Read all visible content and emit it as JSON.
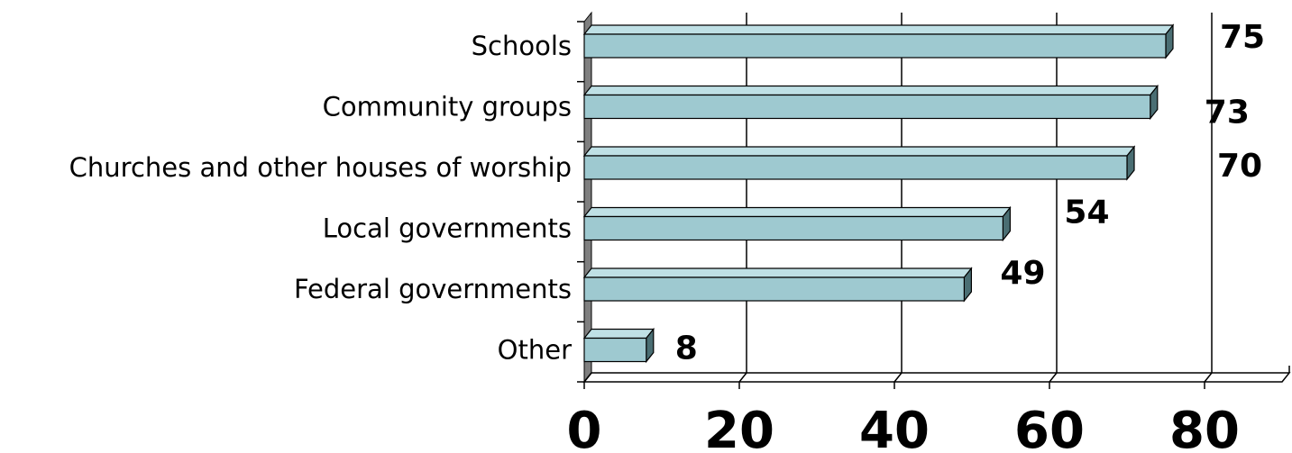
{
  "chart_data": {
    "type": "bar",
    "orientation": "horizontal",
    "style": "3d",
    "categories": [
      "Schools",
      "Community groups",
      "Churches and other houses of worship",
      "Local governments",
      "Federal governments",
      "Other"
    ],
    "values": [
      75,
      73,
      70,
      54,
      49,
      8
    ],
    "data_labels": [
      "75",
      "73",
      "70",
      "54",
      "49",
      "8"
    ],
    "x_ticks": [
      "0",
      "20",
      "40",
      "60",
      "80"
    ],
    "xlim": [
      0,
      90
    ],
    "grid": true,
    "legend": "none",
    "colors": {
      "bar_front": "#9ec9d0",
      "bar_top": "#bfe0e5",
      "bar_side": "#4a6e73",
      "wall": "#7f7f7f",
      "grid": "#000000"
    }
  }
}
